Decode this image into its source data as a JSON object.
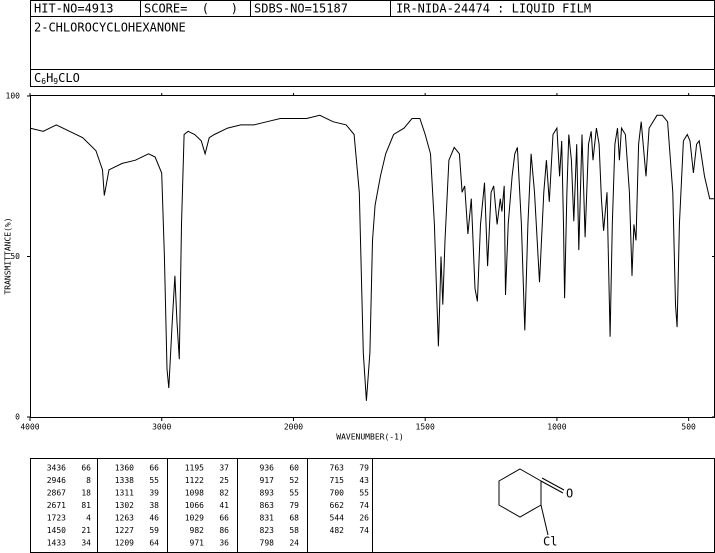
{
  "header": {
    "hit_no": "HIT-NO=4913",
    "score": "SCORE=  (   )",
    "sdbs_no": "SDBS-NO=15187",
    "method": "IR-NIDA-24474 : LIQUID FILM",
    "name": "2-CHLOROCYCLOHEXANONE",
    "formula": [
      "C",
      "6",
      "H",
      "9",
      "CLO"
    ]
  },
  "chart_data": {
    "type": "line",
    "xlabel": "WAVENUMBER(-1)",
    "ylabel": "TRANSMITTANCE(%)",
    "color": "#000000",
    "xlim": [
      4000,
      400
    ],
    "xticks": [
      4000,
      3000,
      2000,
      1500,
      1000,
      500
    ],
    "ylim": [
      0,
      100
    ],
    "yticks": [
      0,
      50,
      100
    ],
    "x": [
      4000,
      3900,
      3800,
      3700,
      3600,
      3500,
      3450,
      3436,
      3400,
      3300,
      3200,
      3100,
      3050,
      3000,
      2980,
      2960,
      2946,
      2920,
      2900,
      2885,
      2867,
      2850,
      2830,
      2800,
      2750,
      2700,
      2671,
      2640,
      2600,
      2500,
      2400,
      2300,
      2200,
      2100,
      2000,
      1950,
      1900,
      1850,
      1800,
      1770,
      1750,
      1735,
      1723,
      1710,
      1700,
      1690,
      1670,
      1650,
      1620,
      1580,
      1550,
      1520,
      1500,
      1480,
      1465,
      1455,
      1450,
      1445,
      1440,
      1433,
      1425,
      1410,
      1390,
      1370,
      1360,
      1350,
      1338,
      1325,
      1311,
      1302,
      1290,
      1275,
      1263,
      1250,
      1240,
      1227,
      1215,
      1209,
      1200,
      1195,
      1185,
      1170,
      1160,
      1150,
      1135,
      1122,
      1110,
      1098,
      1085,
      1066,
      1050,
      1040,
      1029,
      1015,
      1000,
      990,
      982,
      975,
      971,
      962,
      955,
      945,
      936,
      925,
      917,
      905,
      893,
      880,
      870,
      863,
      850,
      840,
      831,
      823,
      810,
      798,
      790,
      780,
      770,
      763,
      755,
      740,
      725,
      715,
      708,
      700,
      690,
      680,
      662,
      650,
      620,
      600,
      580,
      560,
      550,
      544,
      535,
      520,
      505,
      495,
      482,
      470,
      460,
      440,
      420,
      400
    ],
    "values": [
      90,
      89,
      91,
      89,
      87,
      83,
      77,
      69,
      77,
      79,
      80,
      82,
      81,
      76,
      50,
      15,
      9,
      30,
      44,
      30,
      18,
      60,
      88,
      89,
      88,
      86,
      82,
      87,
      88,
      90,
      91,
      91,
      92,
      93,
      93,
      93,
      94,
      92,
      91,
      88,
      70,
      20,
      5,
      20,
      55,
      66,
      75,
      82,
      88,
      90,
      93,
      93,
      88,
      82,
      60,
      35,
      22,
      35,
      50,
      35,
      55,
      80,
      84,
      82,
      70,
      72,
      57,
      68,
      40,
      36,
      60,
      73,
      47,
      70,
      72,
      60,
      68,
      64,
      72,
      38,
      60,
      75,
      82,
      84,
      60,
      27,
      60,
      82,
      70,
      42,
      70,
      80,
      67,
      88,
      90,
      75,
      86,
      60,
      37,
      70,
      88,
      80,
      61,
      85,
      52,
      88,
      56,
      85,
      89,
      80,
      90,
      85,
      68,
      58,
      70,
      25,
      60,
      85,
      90,
      80,
      90,
      88,
      70,
      44,
      60,
      55,
      85,
      92,
      75,
      90,
      94,
      94,
      92,
      70,
      35,
      28,
      60,
      86,
      88,
      86,
      76,
      85,
      86,
      75,
      68,
      68
    ]
  },
  "peaks": [
    [
      3436,
      66
    ],
    [
      2946,
      8
    ],
    [
      2867,
      18
    ],
    [
      2671,
      81
    ],
    [
      1723,
      4
    ],
    [
      1450,
      21
    ],
    [
      1433,
      34
    ],
    [
      1360,
      66
    ],
    [
      1338,
      55
    ],
    [
      1311,
      39
    ],
    [
      1302,
      38
    ],
    [
      1263,
      46
    ],
    [
      1227,
      59
    ],
    [
      1209,
      64
    ],
    [
      1195,
      37
    ],
    [
      1122,
      25
    ],
    [
      1098,
      82
    ],
    [
      1066,
      41
    ],
    [
      1029,
      66
    ],
    [
      982,
      86
    ],
    [
      971,
      36
    ],
    [
      936,
      60
    ],
    [
      917,
      52
    ],
    [
      893,
      55
    ],
    [
      863,
      79
    ],
    [
      831,
      68
    ],
    [
      823,
      58
    ],
    [
      798,
      24
    ],
    [
      763,
      79
    ],
    [
      715,
      43
    ],
    [
      700,
      55
    ],
    [
      662,
      74
    ],
    [
      544,
      26
    ],
    [
      482,
      74
    ]
  ],
  "structure": {
    "oxygen": "O",
    "chlorine": "Cl"
  }
}
